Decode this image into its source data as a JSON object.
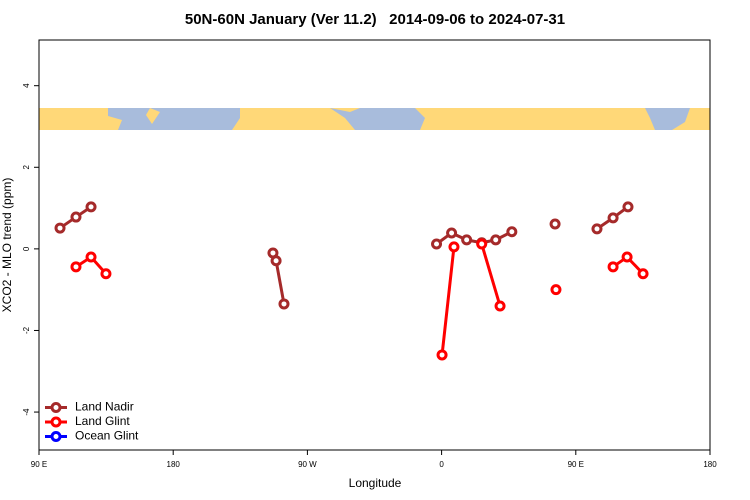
{
  "chart_data": {
    "type": "line",
    "title": "50N-60N January (Ver 11.2)   2014-09-06 to 2024-07-31",
    "x_label": "Longitude",
    "y_label": "XCO2 - MLO trend (ppm)",
    "xlim": [
      -270,
      180
    ],
    "xticks": [
      {
        "value": -270,
        "label": "90 E"
      },
      {
        "value": -180,
        "label": "180"
      },
      {
        "value": -90,
        "label": "90 W"
      },
      0,
      {
        "value": 90,
        "label": "90 E"
      },
      {
        "value": 180,
        "label": "180"
      }
    ],
    "ylim": [
      -4.93,
      5.12
    ],
    "yticks": [
      -4,
      -2,
      0,
      2,
      4
    ],
    "legend_position": "lower left",
    "series": [
      {
        "name": "Land Nadir",
        "color": "#a52a2a",
        "x": [
          -255.9,
          -245.2,
          -235.1,
          null,
          -113.1,
          -111.0,
          -105.7,
          null,
          -3.4,
          6.7,
          16.8,
          26.9,
          36.3,
          47.1,
          null,
          76.1,
          null,
          104.2,
          115.0,
          125.0
        ],
        "values": [
          0.51,
          0.78,
          1.03,
          null,
          -0.1,
          -0.29,
          -1.35,
          null,
          0.12,
          0.39,
          0.22,
          0.15,
          0.22,
          0.42,
          null,
          0.61,
          null,
          0.49,
          0.76,
          1.03
        ]
      },
      {
        "name": "Land Glint",
        "color": "#ff0000",
        "x": [
          -245.2,
          -235.1,
          -225.1,
          null,
          0.3,
          8.3,
          null,
          26.9,
          39.2,
          null,
          76.7,
          null,
          115.0,
          124.4,
          135.1
        ],
        "values": [
          -0.44,
          -0.2,
          -0.61,
          null,
          -2.6,
          0.05,
          null,
          0.12,
          -1.4,
          null,
          -1.0,
          null,
          -0.44,
          -0.2,
          -0.61
        ]
      },
      {
        "name": "Ocean Glint",
        "color": "#0000ff",
        "x": [],
        "values": []
      }
    ]
  }
}
